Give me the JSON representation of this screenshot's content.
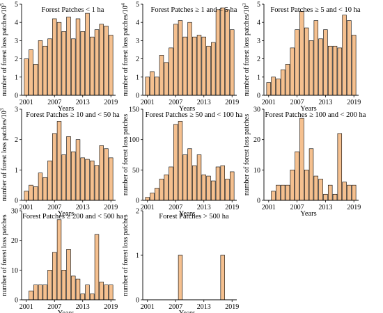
{
  "colors": {
    "bar_fill": "#F5C08F",
    "bar_stroke": "#000000",
    "axis": "#000000"
  },
  "chart_data": [
    {
      "type": "bar",
      "title": "Forest Patches < 1 ha",
      "xlabel": "Years",
      "ylabel": "number of forest loss patches/10",
      "ylabel_sup": "5",
      "x": [
        2001,
        2002,
        2003,
        2004,
        2005,
        2006,
        2007,
        2008,
        2009,
        2010,
        2011,
        2012,
        2013,
        2014,
        2015,
        2016,
        2017,
        2018,
        2019
      ],
      "values": [
        2.0,
        2.5,
        1.7,
        3.0,
        2.7,
        3.1,
        4.2,
        4.0,
        3.5,
        4.3,
        3.1,
        4.2,
        3.5,
        4.5,
        3.2,
        3.6,
        3.9,
        3.8,
        3.3
      ],
      "ylim": [
        0,
        5
      ],
      "yticks": [
        0,
        1,
        2,
        3,
        4,
        5
      ],
      "xticks": [
        2001,
        2007,
        2013,
        2019
      ]
    },
    {
      "type": "bar",
      "title": "Forest Patches ≥ 1 and < 5 ha",
      "xlabel": "Years",
      "ylabel": "number of forest loss patches/10",
      "ylabel_sup": "4",
      "x": [
        2001,
        2002,
        2003,
        2004,
        2005,
        2006,
        2007,
        2008,
        2009,
        2010,
        2011,
        2012,
        2013,
        2014,
        2015,
        2016,
        2017,
        2018,
        2019
      ],
      "values": [
        1.0,
        1.3,
        1.0,
        2.2,
        1.8,
        2.6,
        3.9,
        4.1,
        3.2,
        4.0,
        3.2,
        3.3,
        3.2,
        2.7,
        2.9,
        4.7,
        4.8,
        4.7,
        3.6
      ],
      "ylim": [
        0,
        5
      ],
      "yticks": [
        0,
        1,
        2,
        3,
        4,
        5
      ],
      "xticks": [
        2001,
        2007,
        2013,
        2019
      ]
    },
    {
      "type": "bar",
      "title": "Forest Patches ≥ 5 and < 10 ha",
      "xlabel": "Years",
      "ylabel": "number of forest loss patches/10",
      "ylabel_sup": "3",
      "x": [
        2001,
        2002,
        2003,
        2004,
        2005,
        2006,
        2007,
        2008,
        2009,
        2010,
        2011,
        2012,
        2013,
        2014,
        2015,
        2016,
        2017,
        2018,
        2019
      ],
      "values": [
        0.7,
        1.0,
        0.9,
        1.4,
        1.7,
        2.6,
        3.6,
        4.6,
        3.7,
        3.0,
        4.1,
        3.1,
        3.6,
        2.7,
        2.7,
        2.6,
        4.4,
        4.1,
        3.3
      ],
      "ylim": [
        0,
        5
      ],
      "yticks": [
        0,
        1,
        2,
        3,
        4,
        5
      ],
      "xticks": [
        2001,
        2007,
        2013,
        2019
      ]
    },
    {
      "type": "bar",
      "title": "Forest Patches ≥ 10 and < 50 ha",
      "xlabel": "Years",
      "ylabel": "number of forest loss patches/10",
      "ylabel_sup": "3",
      "x": [
        2001,
        2002,
        2003,
        2004,
        2005,
        2006,
        2007,
        2008,
        2009,
        2010,
        2011,
        2012,
        2013,
        2014,
        2015,
        2016,
        2017,
        2018,
        2019
      ],
      "values": [
        0.3,
        0.5,
        0.45,
        0.9,
        0.75,
        1.3,
        2.2,
        2.6,
        1.5,
        2.1,
        1.6,
        2.0,
        1.4,
        1.35,
        1.3,
        1.15,
        1.8,
        1.7,
        1.4
      ],
      "ylim": [
        0,
        3
      ],
      "yticks": [
        0,
        1,
        2,
        3
      ],
      "xticks": [
        2001,
        2007,
        2013,
        2019
      ]
    },
    {
      "type": "bar",
      "title": "Forest Patches ≥ 50 and < 100 ha",
      "xlabel": "Years",
      "ylabel": "number of forest loss patches",
      "ylabel_sup": "",
      "x": [
        2001,
        2002,
        2003,
        2004,
        2005,
        2006,
        2007,
        2008,
        2009,
        2010,
        2011,
        2012,
        2013,
        2014,
        2015,
        2016,
        2017,
        2018,
        2019
      ],
      "values": [
        5,
        12,
        20,
        35,
        42,
        55,
        125,
        130,
        75,
        85,
        57,
        75,
        42,
        40,
        32,
        55,
        57,
        35,
        47
      ],
      "ylim": [
        0,
        150
      ],
      "yticks": [
        0,
        50,
        100,
        150
      ],
      "xticks": [
        2001,
        2007,
        2013,
        2019
      ]
    },
    {
      "type": "bar",
      "title": "Forest Patches ≥ 100 and < 200 ha",
      "xlabel": "Years",
      "ylabel": "number of forest loss patches",
      "ylabel_sup": "",
      "x": [
        2001,
        2002,
        2003,
        2004,
        2005,
        2006,
        2007,
        2008,
        2009,
        2010,
        2011,
        2012,
        2013,
        2014,
        2015,
        2016,
        2017,
        2018,
        2019
      ],
      "values": [
        0,
        3,
        5,
        5,
        5,
        10,
        16,
        27,
        10,
        17,
        8,
        7,
        2,
        5,
        2,
        22,
        6,
        5,
        5
      ],
      "ylim": [
        0,
        30
      ],
      "yticks": [
        0,
        10,
        20,
        30
      ],
      "xticks": [
        2001,
        2007,
        2013,
        2019
      ]
    },
    {
      "type": "bar",
      "title": "Forest Patches ≥ 200 and < 500 ha",
      "xlabel": "Years",
      "ylabel": "number of forest loss patches",
      "ylabel_sup": "",
      "x": [
        2001,
        2002,
        2003,
        2004,
        2005,
        2006,
        2007,
        2008,
        2009,
        2010,
        2011,
        2012,
        2013,
        2014,
        2015,
        2016,
        2017,
        2018,
        2019
      ],
      "values": [
        0,
        3,
        5,
        5,
        5,
        10,
        16,
        27,
        10,
        17,
        8,
        7,
        2,
        5,
        2,
        22,
        6,
        5,
        5
      ],
      "ylim": [
        0,
        30
      ],
      "yticks": [
        0,
        10,
        20,
        30
      ],
      "xticks": [
        2001,
        2007,
        2013,
        2019
      ]
    },
    {
      "type": "bar",
      "title": "Forest Patches > 500 ha",
      "xlabel": "Years",
      "ylabel": "number of forest loss patches",
      "ylabel_sup": "",
      "x": [
        2001,
        2002,
        2003,
        2004,
        2005,
        2006,
        2007,
        2008,
        2009,
        2010,
        2011,
        2012,
        2013,
        2014,
        2015,
        2016,
        2017,
        2018,
        2019
      ],
      "values": [
        0,
        0,
        0,
        0,
        0,
        0,
        0,
        1,
        0,
        0,
        0,
        0,
        0,
        0,
        0,
        0,
        1,
        0,
        0
      ],
      "ylim": [
        0,
        2
      ],
      "yticks": [
        0,
        1,
        2
      ],
      "xticks": [
        2001,
        2007,
        2013,
        2019
      ]
    }
  ]
}
